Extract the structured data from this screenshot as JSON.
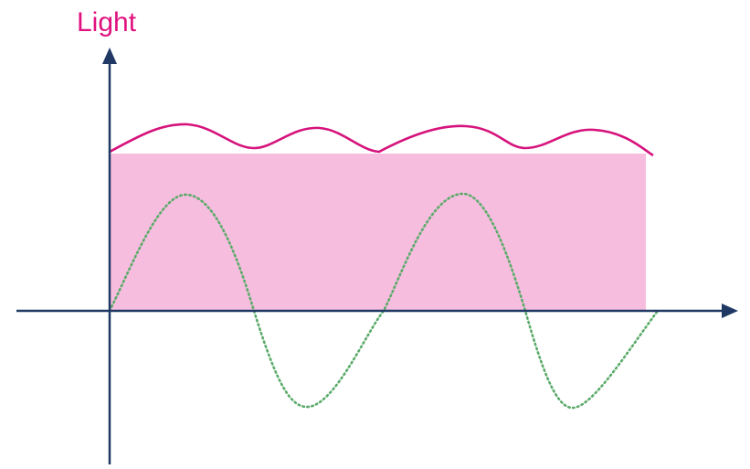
{
  "diagram": {
    "y_axis_label": "Light",
    "colors": {
      "axis": "#1f3864",
      "label": "#e0117f",
      "fill": "#f7bddf",
      "envelope_line": "#d6137c",
      "wave_line": "#5bab6a",
      "background": "#ffffff"
    },
    "line_styles": {
      "wave": "dotted",
      "envelope": "solid"
    }
  }
}
